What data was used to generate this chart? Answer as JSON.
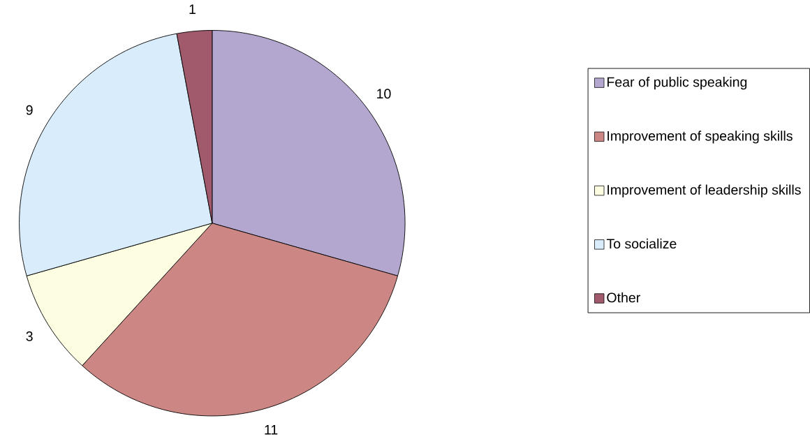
{
  "chart_data": {
    "type": "pie",
    "categories": [
      "Fear of public speaking",
      "Improvement of speaking skills",
      "Improvement of leadership skills",
      "To socialize",
      "Other"
    ],
    "values": [
      10,
      11,
      3,
      9,
      1
    ],
    "colors": [
      "#b3a6cf",
      "#cc8784",
      "#fdfde1",
      "#d9ecfb",
      "#a05a6c"
    ],
    "data_labels": true,
    "legend": "right"
  }
}
